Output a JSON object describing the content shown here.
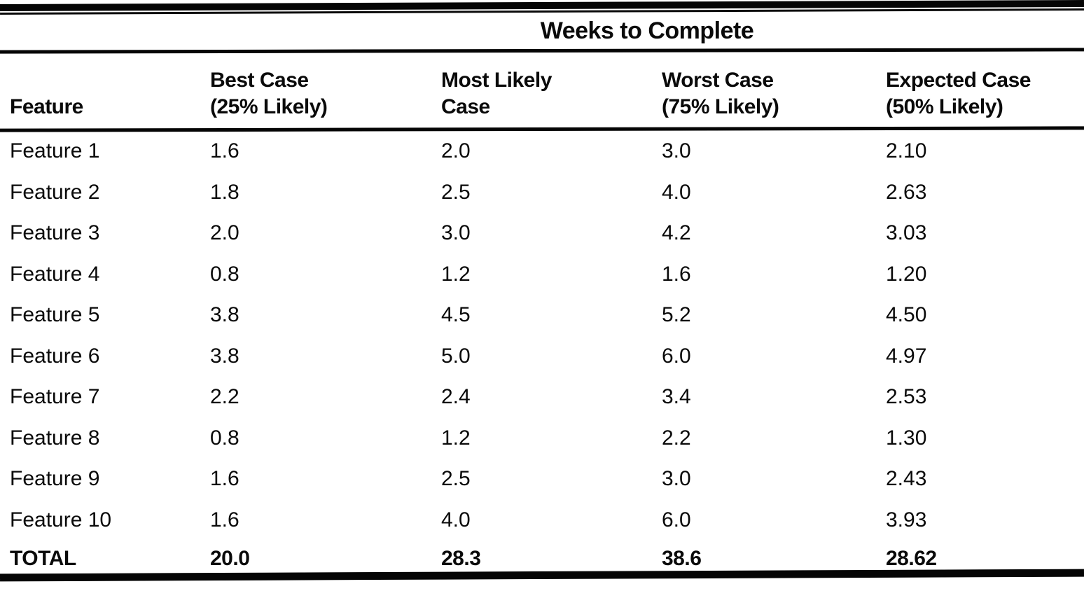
{
  "page": {
    "background": "#ffffff",
    "text_color": "#0a0a0a",
    "rule_color": "#050505"
  },
  "chart_data": {
    "type": "table",
    "title": "Weeks to Complete",
    "columns": [
      [
        "Feature",
        ""
      ],
      [
        "Best Case",
        "(25% Likely)"
      ],
      [
        "Most Likely",
        "Case"
      ],
      [
        "Worst Case",
        "(75% Likely)"
      ],
      [
        "Expected Case",
        "(50% Likely)"
      ]
    ],
    "rows": [
      [
        "Feature 1",
        "1.6",
        "2.0",
        "3.0",
        "2.10"
      ],
      [
        "Feature 2",
        "1.8",
        "2.5",
        "4.0",
        "2.63"
      ],
      [
        "Feature 3",
        "2.0",
        "3.0",
        "4.2",
        "3.03"
      ],
      [
        "Feature 4",
        "0.8",
        "1.2",
        "1.6",
        "1.20"
      ],
      [
        "Feature 5",
        "3.8",
        "4.5",
        "5.2",
        "4.50"
      ],
      [
        "Feature 6",
        "3.8",
        "5.0",
        "6.0",
        "4.97"
      ],
      [
        "Feature 7",
        "2.2",
        "2.4",
        "3.4",
        "2.53"
      ],
      [
        "Feature 8",
        "0.8",
        "1.2",
        "2.2",
        "1.30"
      ],
      [
        "Feature 9",
        "1.6",
        "2.5",
        "3.0",
        "2.43"
      ],
      [
        "Feature 10",
        "1.6",
        "4.0",
        "6.0",
        "3.93"
      ]
    ],
    "total_row": [
      "TOTAL",
      "20.0",
      "28.3",
      "38.6",
      "28.62"
    ]
  }
}
